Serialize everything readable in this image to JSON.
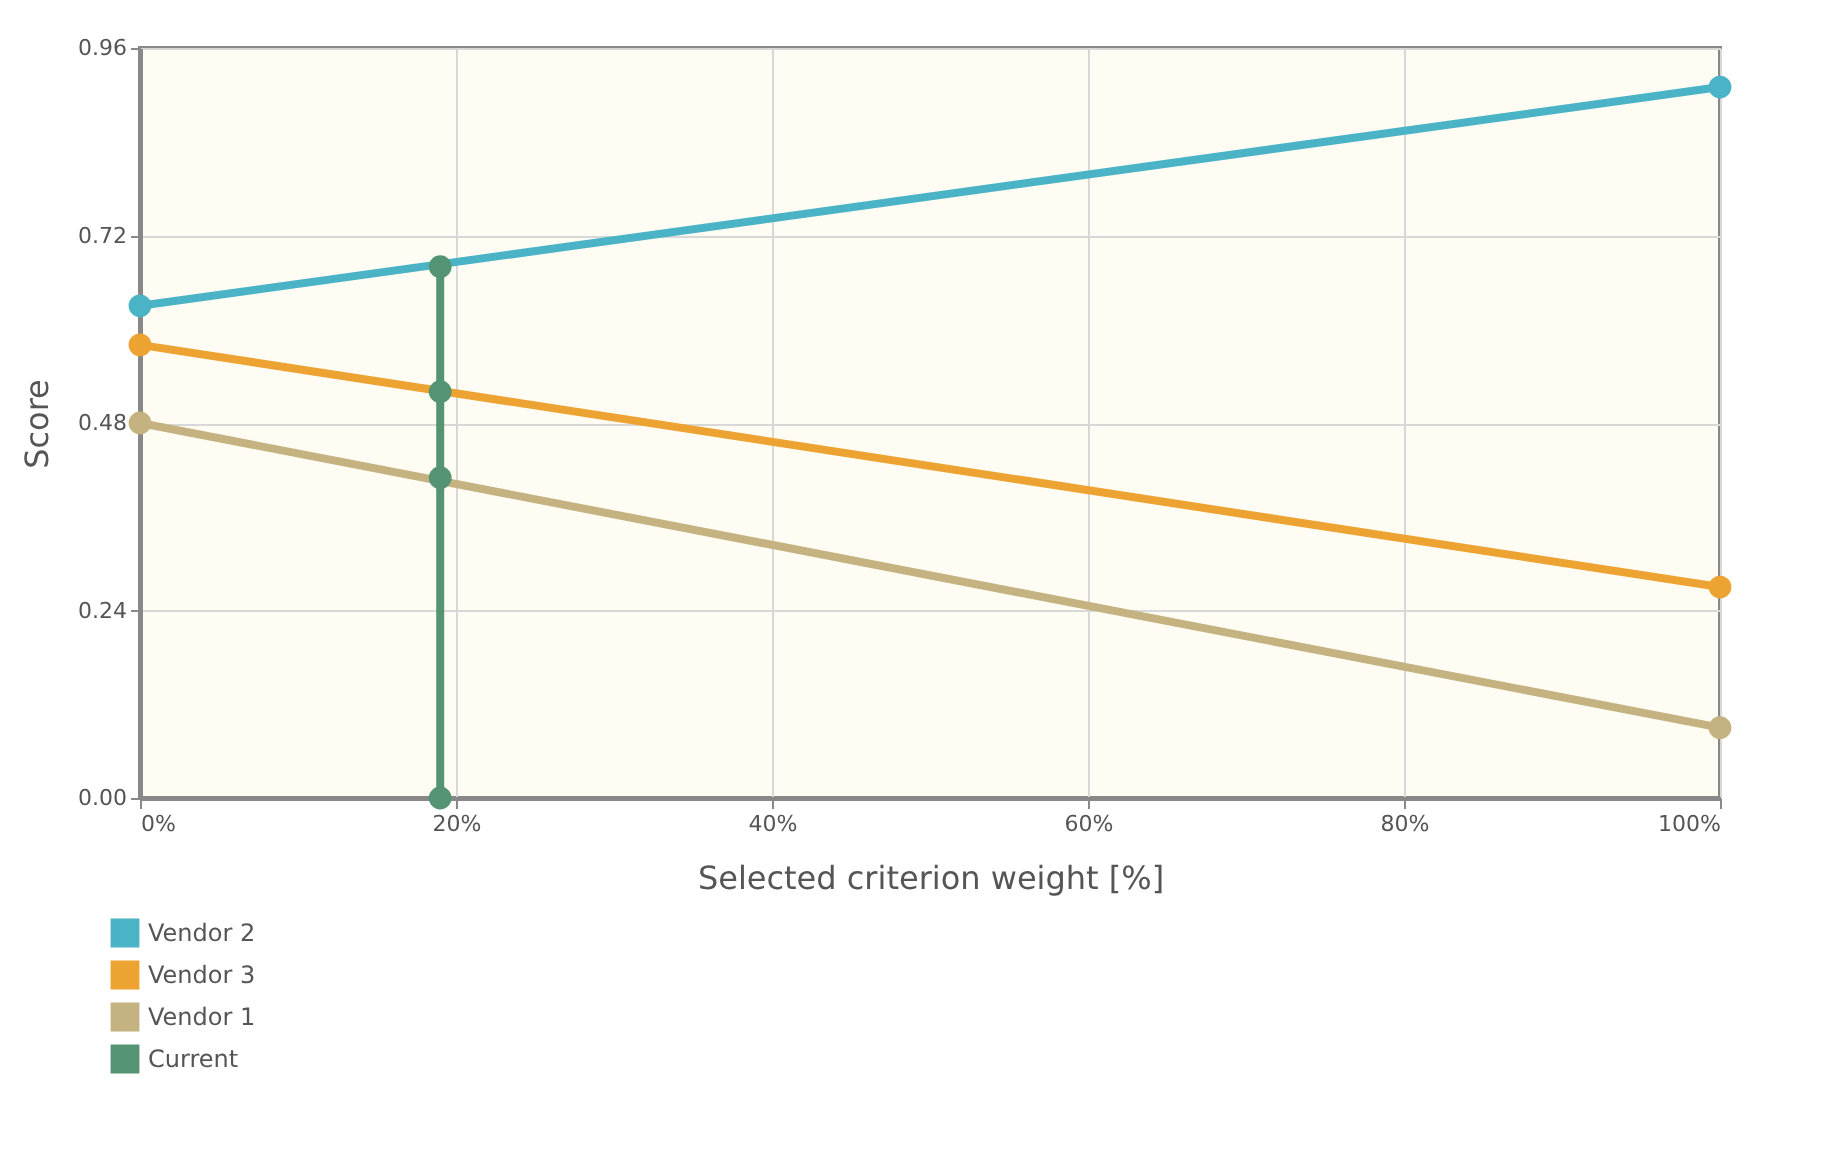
{
  "chart_data": {
    "type": "line",
    "xlabel": "Selected criterion weight [%]",
    "ylabel": "Score",
    "series": [
      {
        "name": "Vendor 2",
        "color": "#4ab3c6",
        "x": [
          0,
          100
        ],
        "values": [
          0.63,
          0.91
        ]
      },
      {
        "name": "Vendor 3",
        "color": "#eda331",
        "x": [
          0,
          100
        ],
        "values": [
          0.58,
          0.27
        ]
      },
      {
        "name": "Vendor 1",
        "color": "#c4b280",
        "x": [
          0,
          100
        ],
        "values": [
          0.48,
          0.09
        ]
      },
      {
        "name": "Current",
        "color": "#559473",
        "x": [
          19,
          19,
          19,
          19
        ],
        "values": [
          0,
          0.41,
          0.52,
          0.68
        ]
      }
    ],
    "xlim": [
      0,
      100
    ],
    "ylim": [
      0,
      0.96
    ],
    "xticks": [
      {
        "value": 0,
        "label": "0%"
      },
      {
        "value": 20,
        "label": "20%"
      },
      {
        "value": 40,
        "label": "40%"
      },
      {
        "value": 60,
        "label": "60%"
      },
      {
        "value": 80,
        "label": "80%"
      },
      {
        "value": 100,
        "label": "100%"
      }
    ],
    "yticks": [
      {
        "value": 0,
        "label": "0.00"
      },
      {
        "value": 0.24,
        "label": "0.24"
      },
      {
        "value": 0.48,
        "label": "0.48"
      },
      {
        "value": 0.72,
        "label": "0.72"
      },
      {
        "value": 0.96,
        "label": "0.96"
      }
    ],
    "grid": true,
    "legend": "bottom left",
    "marker": "circle",
    "line_style": "solid"
  }
}
